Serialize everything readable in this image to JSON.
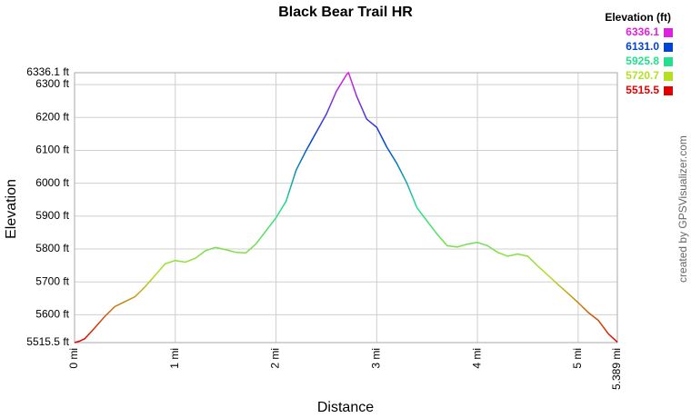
{
  "chart_data": {
    "type": "line",
    "title": "Black Bear Trail HR",
    "x_label": "Distance",
    "y_label": "Elevation",
    "credit": "created by GPSVisualizer.com",
    "legend_title": "Elevation (ft)",
    "colorscale": [
      {
        "value": 6336.1,
        "label": "6336.1",
        "color": "#e020e0"
      },
      {
        "value": 6131.0,
        "label": "6131.0",
        "color": "#0044d4"
      },
      {
        "value": 5925.8,
        "label": "5925.8",
        "color": "#22e08c"
      },
      {
        "value": 5720.7,
        "label": "5720.7",
        "color": "#b4e020"
      },
      {
        "value": 5515.5,
        "label": "5515.5",
        "color": "#e00000"
      }
    ],
    "x": [
      0,
      0.05,
      0.1,
      0.2,
      0.3,
      0.4,
      0.5,
      0.6,
      0.7,
      0.8,
      0.9,
      1.0,
      1.1,
      1.2,
      1.3,
      1.4,
      1.5,
      1.6,
      1.7,
      1.8,
      1.9,
      2.0,
      2.1,
      2.2,
      2.3,
      2.4,
      2.5,
      2.6,
      2.7,
      2.72,
      2.8,
      2.9,
      3.0,
      3.1,
      3.2,
      3.3,
      3.4,
      3.5,
      3.6,
      3.7,
      3.8,
      3.9,
      4.0,
      4.1,
      4.2,
      4.3,
      4.4,
      4.5,
      4.6,
      4.7,
      4.8,
      4.9,
      5.0,
      5.1,
      5.2,
      5.3,
      5.389
    ],
    "values": [
      5515.5,
      5520,
      5527,
      5560,
      5595,
      5625,
      5640,
      5655,
      5685,
      5720,
      5755,
      5765,
      5760,
      5772,
      5795,
      5805,
      5798,
      5790,
      5788,
      5815,
      5855,
      5895,
      5945,
      6040,
      6100,
      6155,
      6210,
      6280,
      6330,
      6336.1,
      6265,
      6195,
      6170,
      6110,
      6060,
      6000,
      5925,
      5885,
      5845,
      5810,
      5806,
      5815,
      5820,
      5810,
      5790,
      5778,
      5785,
      5778,
      5748,
      5720,
      5692,
      5665,
      5637,
      5607,
      5583,
      5542,
      5517
    ],
    "xlim": [
      0,
      5.389
    ],
    "ylim": [
      5515.5,
      6336.1
    ],
    "xticks": [
      {
        "value": 0,
        "label": "0 mi"
      },
      {
        "value": 1,
        "label": "1 mi"
      },
      {
        "value": 2,
        "label": "2 mi"
      },
      {
        "value": 3,
        "label": "3 mi"
      },
      {
        "value": 4,
        "label": "4 mi"
      },
      {
        "value": 5,
        "label": "5 mi"
      },
      {
        "value": 5.389,
        "label": "5.389 mi"
      }
    ],
    "yticks": [
      {
        "value": 5515.5,
        "label": "5515.5 ft"
      },
      {
        "value": 5600,
        "label": "5600 ft"
      },
      {
        "value": 5700,
        "label": "5700 ft"
      },
      {
        "value": 5800,
        "label": "5800 ft"
      },
      {
        "value": 5900,
        "label": "5900 ft"
      },
      {
        "value": 6000,
        "label": "6000 ft"
      },
      {
        "value": 6100,
        "label": "6100 ft"
      },
      {
        "value": 6200,
        "label": "6200 ft"
      },
      {
        "value": 6300,
        "label": "6300 ft"
      },
      {
        "value": 6336.1,
        "label": "6336.1 ft"
      }
    ],
    "grid": true
  }
}
